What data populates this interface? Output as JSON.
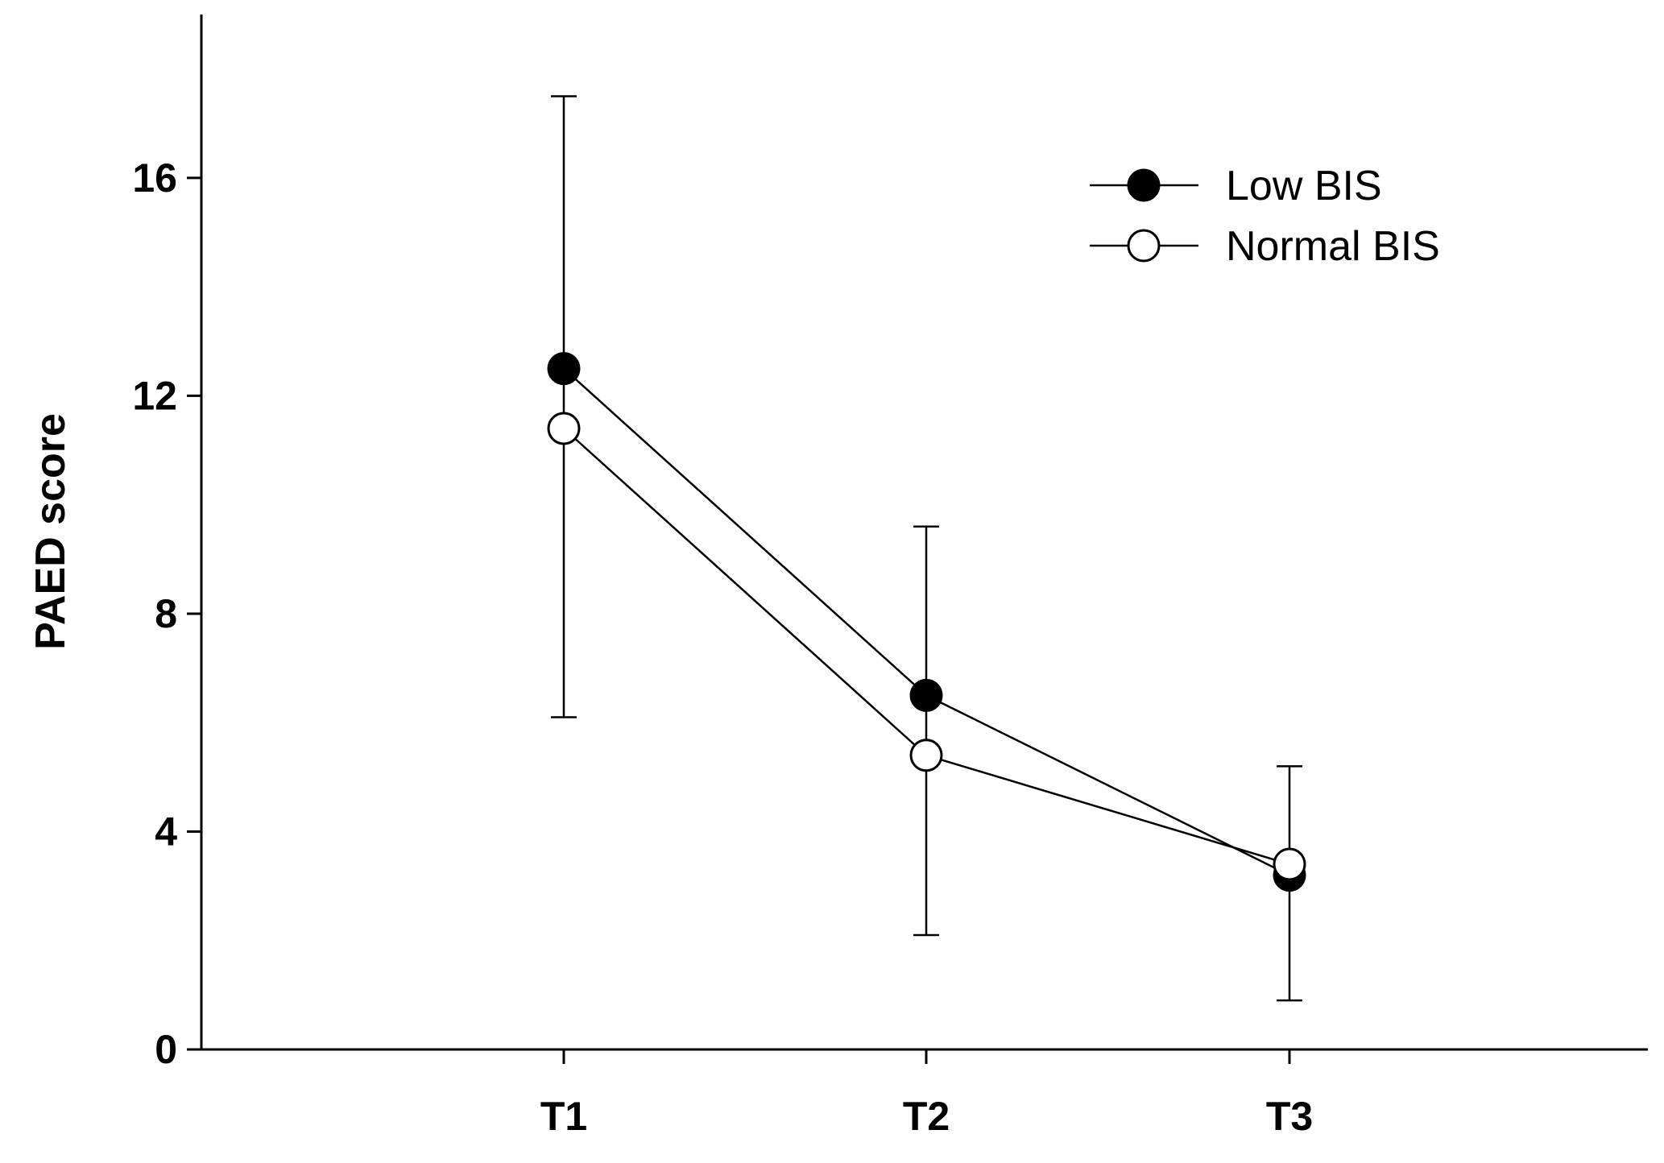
{
  "chart_data": {
    "type": "line",
    "title": "",
    "xlabel": "",
    "ylabel": "PAED score",
    "categories": [
      "T1",
      "T2",
      "T3"
    ],
    "ylim": [
      0,
      19
    ],
    "yticks": [
      0,
      4,
      8,
      12,
      16
    ],
    "grid": false,
    "legend_position": "top-right",
    "series": [
      {
        "name": "Low BIS",
        "marker": "filled-circle",
        "values": [
          12.5,
          6.5,
          3.2
        ],
        "error_upper": [
          17.5,
          9.6,
          5.2
        ],
        "error_lower": [
          6.1,
          2.1,
          0.9
        ]
      },
      {
        "name": "Normal BIS",
        "marker": "open-circle",
        "values": [
          11.4,
          5.4,
          3.4
        ],
        "error_upper": [
          null,
          null,
          null
        ],
        "error_lower": [
          null,
          null,
          null
        ]
      }
    ]
  }
}
